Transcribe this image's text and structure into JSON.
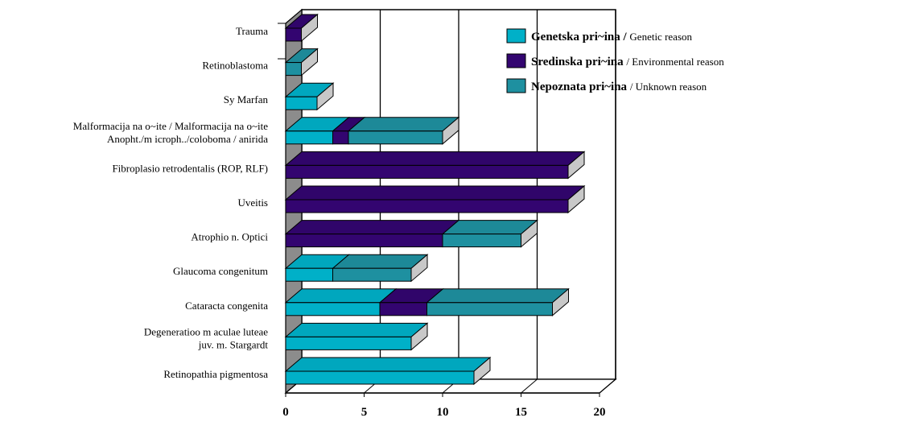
{
  "chart_data": {
    "type": "bar",
    "orientation": "horizontal",
    "style": "3d-stacked",
    "title": "",
    "xlabel": "",
    "ylabel": "",
    "xlim": [
      0,
      20
    ],
    "x_ticks": [
      "0",
      "5",
      "10",
      "15",
      "20"
    ],
    "grid": "vertical gridlines at 5, 10, 15, 20",
    "legend_position": "top-right",
    "categories": [
      [
        "Trauma"
      ],
      [
        "Retinoblastoma"
      ],
      [
        "Sy Marfan"
      ],
      [
        "Malformacija na o~ite / Malformacija na o~ite",
        "Anopht./m icroph../coloboma / anirida"
      ],
      [
        "Fibroplasio retrodentalis (ROP, RLF)"
      ],
      [
        "Uveitis"
      ],
      [
        "Atrophio n. Optici"
      ],
      [
        "Glaucoma congenitum"
      ],
      [
        "Cataracta congenita"
      ],
      [
        "Degeneratioo m aculae luteae",
        "juv. m. Stargardt"
      ],
      [
        "Retinopathia pigmentosa"
      ]
    ],
    "series": [
      {
        "key": "genetic",
        "legend_main": "Genetska pri~ina /",
        "legend_sub": "Genetic reason",
        "color": "#00B0C8",
        "values": [
          0,
          0,
          2,
          3,
          0,
          0,
          0,
          3,
          6,
          8,
          12
        ]
      },
      {
        "key": "environmental",
        "legend_main": "Sredinska pri~ina",
        "legend_sub": "/ Environmental reason",
        "color": "#330570",
        "values": [
          1,
          0,
          0,
          1,
          18,
          18,
          10,
          0,
          3,
          0,
          0
        ]
      },
      {
        "key": "unknown",
        "legend_main": "Nepoznata pri~ina",
        "legend_sub": "/ Unknown reason",
        "color": "#1E90A0",
        "values": [
          0,
          1,
          0,
          6,
          0,
          0,
          5,
          5,
          8,
          0,
          0
        ]
      }
    ]
  }
}
